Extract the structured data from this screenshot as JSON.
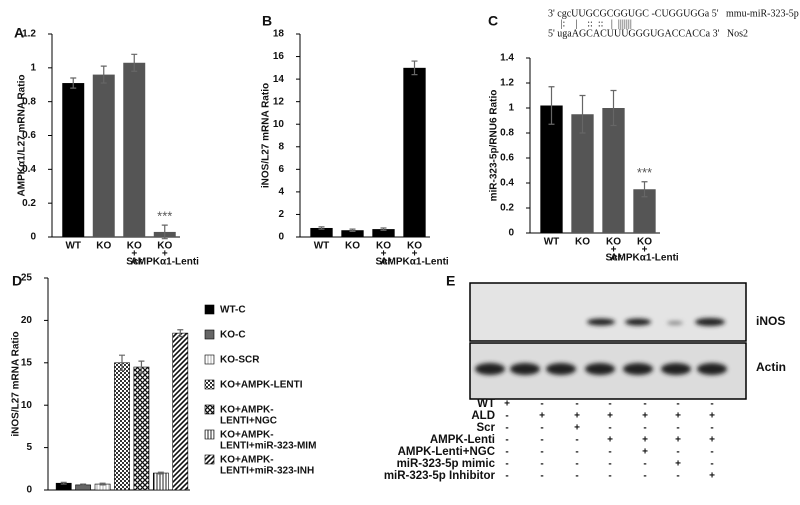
{
  "chart_data": [
    {
      "type": "bar",
      "label": "A",
      "y_label": "AMPKα1/L27 mRNA Ratio",
      "categories": [
        [
          "WT"
        ],
        [
          "KO"
        ],
        [
          "KO",
          "+",
          "Scr"
        ],
        [
          "KO",
          "+",
          "AMPKα1-Lenti"
        ]
      ],
      "values": [
        0.91,
        0.96,
        1.03,
        0.03
      ],
      "errors": [
        0.03,
        0.05,
        0.05,
        0.04
      ],
      "colors": [
        "#000000",
        "#555555",
        "#555555",
        "#555555"
      ],
      "ylim": [
        0,
        1.2
      ],
      "yticks": [
        0,
        0.2,
        0.4,
        0.6,
        0.8,
        1,
        1.2
      ],
      "annotations": [
        {
          "bar": 3,
          "text": "***"
        }
      ]
    },
    {
      "type": "bar",
      "label": "B",
      "y_label": "iNOS/L27 mRNA Ratio",
      "categories": [
        [
          "WT"
        ],
        [
          "KO"
        ],
        [
          "KO",
          "+",
          "Scr"
        ],
        [
          "KO",
          "+",
          "AMPKα1-Lenti"
        ]
      ],
      "values": [
        0.8,
        0.6,
        0.7,
        15.0
      ],
      "errors": [
        0.1,
        0.1,
        0.1,
        0.6
      ],
      "colors": [
        "#000000",
        "#000000",
        "#000000",
        "#000000"
      ],
      "ylim": [
        0,
        18
      ],
      "yticks": [
        0,
        2,
        4,
        6,
        8,
        10,
        12,
        14,
        16,
        18
      ]
    },
    {
      "type": "bar",
      "label": "C",
      "y_label": "miR-323-5p/RNU6 Ratio",
      "categories": [
        [
          "WT"
        ],
        [
          "KO"
        ],
        [
          "KO",
          "+",
          "Scr"
        ],
        [
          "KO",
          "+",
          "AMPKα1-Lenti"
        ]
      ],
      "values": [
        1.02,
        0.95,
        1.0,
        0.35
      ],
      "errors": [
        0.15,
        0.15,
        0.14,
        0.06
      ],
      "colors": [
        "#000000",
        "#555555",
        "#555555",
        "#555555"
      ],
      "ylim": [
        0,
        1.4
      ],
      "yticks": [
        0,
        0.2,
        0.4,
        0.6,
        0.8,
        1,
        1.2,
        1.4
      ],
      "annotations": [
        {
          "bar": 3,
          "text": "***"
        }
      ],
      "alignment": [
        "3' cgcUUGCGCGGUGC -CUGGUGGa 5'   mmu-miR-323-5p",
        "     |:    |    ::  ::   |  |||||||",
        "5' ugaAGCACUUUGGGUGACCACCa 3'   Nos2"
      ]
    },
    {
      "type": "bar",
      "label": "D",
      "y_label": "iNOS/L27 mRNA Ratio",
      "ylim": [
        0,
        25
      ],
      "yticks": [
        0,
        5,
        10,
        15,
        20,
        25
      ],
      "series": [
        {
          "name": [
            "WT-C"
          ],
          "pattern": "solid-black",
          "values": [
            0.8
          ],
          "errors": [
            0.1
          ]
        },
        {
          "name": [
            "KO-C"
          ],
          "pattern": "solid-gray",
          "values": [
            0.6
          ],
          "errors": [
            0.1
          ]
        },
        {
          "name": [
            "KO-SCR"
          ],
          "pattern": "light-lines",
          "values": [
            0.7
          ],
          "errors": [
            0.1
          ]
        },
        {
          "name": [
            "KO+AMPK-LENTI"
          ],
          "pattern": "checker",
          "values": [
            15.0
          ],
          "errors": [
            0.9
          ]
        },
        {
          "name": [
            "KO+AMPK-",
            "LENTI+NGC"
          ],
          "pattern": "cross",
          "values": [
            14.5
          ],
          "errors": [
            0.7
          ]
        },
        {
          "name": [
            "KO+AMPK-",
            "LENTI+miR-323-MIM"
          ],
          "pattern": "vlines",
          "values": [
            2.0
          ],
          "errors": [
            0.1
          ]
        },
        {
          "name": [
            "KO+AMPK-",
            "LENTI+miR-323-INH"
          ],
          "pattern": "diag",
          "values": [
            18.5
          ],
          "errors": [
            0.4
          ]
        }
      ]
    }
  ],
  "blot": {
    "label": "E",
    "bands": [
      "iNOS",
      "Actin"
    ],
    "rows": [
      {
        "name": "WT",
        "signs": [
          "+",
          "-",
          "-",
          "-",
          "-",
          "-",
          "-"
        ]
      },
      {
        "name": "ALD",
        "signs": [
          "-",
          "+",
          "+",
          "+",
          "+",
          "+",
          "+"
        ]
      },
      {
        "name": "Scr",
        "signs": [
          "-",
          "-",
          "+",
          "-",
          "-",
          "-",
          "-"
        ]
      },
      {
        "name": "AMPK-Lenti",
        "signs": [
          "-",
          "-",
          "-",
          "+",
          "+",
          "+",
          "+"
        ]
      },
      {
        "name": "AMPK-Lenti+NGC",
        "signs": [
          "-",
          "-",
          "-",
          "-",
          "+",
          "-",
          "-"
        ]
      },
      {
        "name": "miR-323-5p mimic",
        "signs": [
          "-",
          "-",
          "-",
          "-",
          "-",
          "+",
          "-"
        ]
      },
      {
        "name": "miR-323-5p Inhibitor",
        "signs": [
          "-",
          "-",
          "-",
          "-",
          "-",
          "-",
          "+"
        ]
      }
    ]
  }
}
